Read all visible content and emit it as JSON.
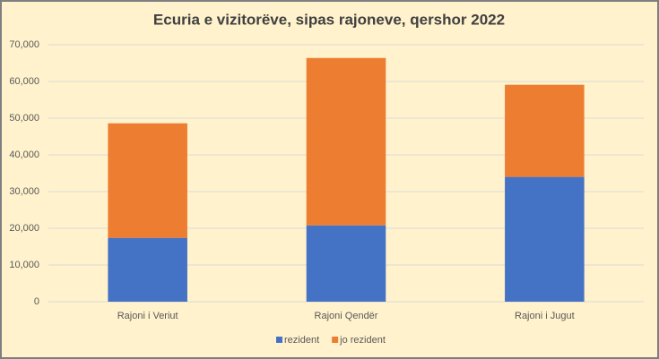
{
  "chart_data": {
    "type": "stacked-bar",
    "title": "Ecuria e vizitorëve, sipas rajoneve, qershor 2022",
    "categories": [
      "Rajoni i Veriut",
      "Rajoni Qendër",
      "Rajoni i Jugut"
    ],
    "series": [
      {
        "name": "rezident",
        "color": "#4472c4",
        "values": [
          17400,
          20800,
          34000
        ]
      },
      {
        "name": "jo rezident",
        "color": "#ed7d31",
        "values": [
          31200,
          45600,
          25100
        ]
      }
    ],
    "ylim": [
      0,
      70000
    ],
    "yticks": [
      0,
      {
        "value": 10000,
        "label": "10,000"
      },
      {
        "value": 20000,
        "label": "20,000"
      },
      {
        "value": 30000,
        "label": "30,000"
      },
      {
        "value": 40000,
        "label": "40,000"
      },
      {
        "value": 50000,
        "label": "50,000"
      },
      {
        "value": 60000,
        "label": "60,000"
      },
      {
        "value": 70000,
        "label": "70,000"
      }
    ],
    "grid": true,
    "legend": "bottom"
  }
}
